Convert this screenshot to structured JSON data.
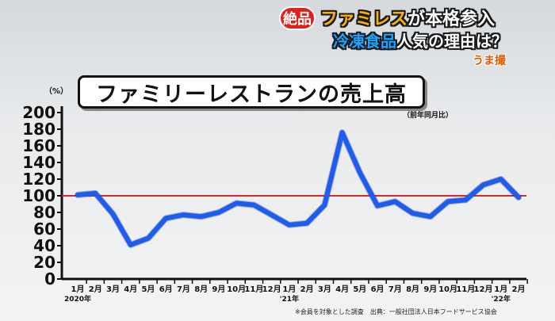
{
  "caption": {
    "tag": "絶品",
    "line1_highlight": "ファミレス",
    "line1_rest": "が本格参入",
    "line2_highlight": "冷凍食品",
    "line2_rest": "人気の理由は？",
    "logo": "うま撮"
  },
  "footnote": "※会員を対象とした調査　出典：一般社団法人日本フードサービス協会",
  "colors": {
    "line": "#1e5cf0",
    "reference": "#d42a2a",
    "axis": "#111111"
  },
  "chart_data": {
    "type": "line",
    "title": "ファミリーレストランの売上高",
    "subtitle": "（前年同月比）",
    "ylabel": "（%）",
    "ylim": [
      0,
      200
    ],
    "yticks": [
      0,
      20,
      40,
      60,
      80,
      100,
      120,
      140,
      160,
      180,
      200
    ],
    "reference_line": 100,
    "categories": [
      "1月",
      "2月",
      "3月",
      "4月",
      "5月",
      "6月",
      "7月",
      "8月",
      "9月",
      "10月",
      "11月",
      "12月",
      "1月",
      "2月",
      "3月",
      "4月",
      "5月",
      "6月",
      "7月",
      "8月",
      "9月",
      "10月",
      "11月",
      "12月",
      "1月",
      "2月"
    ],
    "year_labels": [
      {
        "index": 0,
        "label": "2020年"
      },
      {
        "index": 12,
        "label": "'21年"
      },
      {
        "index": 24,
        "label": "'22年"
      }
    ],
    "values": [
      101,
      103,
      78,
      41,
      49,
      73,
      77,
      75,
      80,
      91,
      89,
      77,
      65,
      67,
      89,
      176,
      128,
      88,
      93,
      79,
      75,
      93,
      95,
      113,
      120,
      98
    ],
    "grid": false,
    "legend": "none"
  }
}
